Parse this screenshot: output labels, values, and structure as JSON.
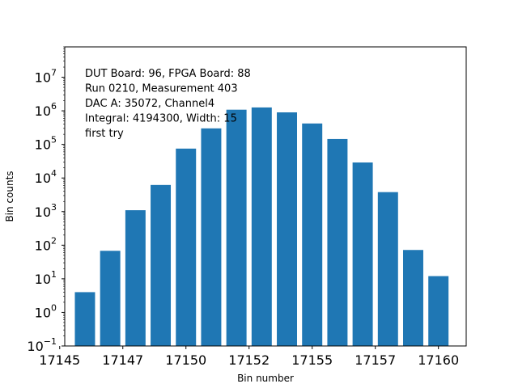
{
  "chart_data": {
    "type": "bar",
    "scale_y": "log",
    "x": [
      17146,
      17147,
      17148,
      17149,
      17150,
      17151,
      17152,
      17153,
      17154,
      17155,
      17156,
      17157,
      17158,
      17159,
      17160
    ],
    "values": [
      4,
      68,
      1100,
      6200,
      75000,
      300000,
      1080000,
      1260000,
      900000,
      420000,
      145000,
      29000,
      3800,
      72,
      12
    ],
    "xlabel": "Bin number",
    "ylabel": "Bin counts",
    "xlim": [
      17145.2,
      17161.1
    ],
    "ylim": [
      0.1,
      80000000
    ],
    "x_ticks": [
      17145,
      17147.5,
      17150,
      17152.5,
      17155,
      17157.5,
      17160
    ],
    "x_tick_labels": [
      "17145",
      "17147",
      "17150",
      "17152",
      "17155",
      "17157",
      "17160"
    ],
    "y_ticks_exp": [
      -1,
      0,
      1,
      2,
      3,
      4,
      5,
      6,
      7
    ],
    "bar_color": "#1f77b4",
    "grid": false,
    "annotation_lines": [
      "DUT Board: 96, FPGA Board: 88",
      "Run 0210, Measurement 403",
      "DAC A: 35072, Channel4",
      "Integral: 4194300, Width: 15",
      "first try"
    ]
  }
}
